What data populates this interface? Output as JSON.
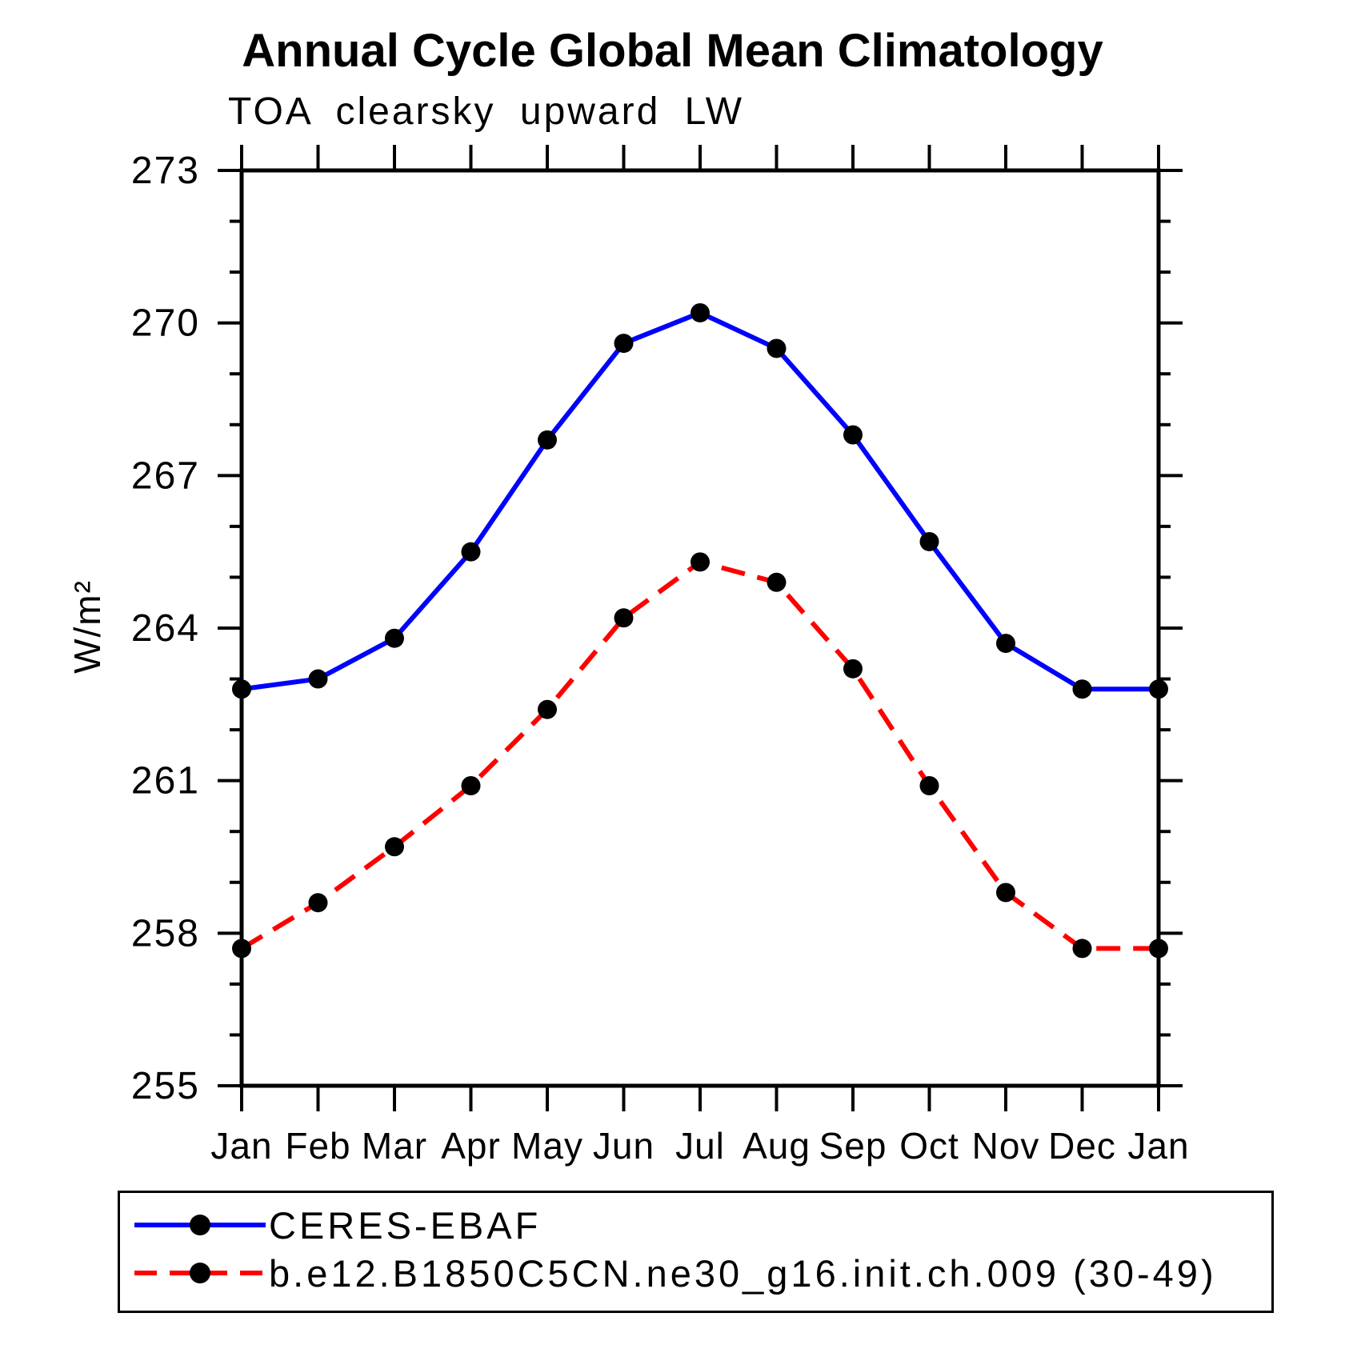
{
  "chart": {
    "title": "Annual Cycle Global Mean Climatology",
    "subtitle": "TOA clearsky upward LW",
    "ylabel": "W/m²"
  },
  "chart_data": {
    "type": "line",
    "title": "Annual Cycle Global Mean Climatology",
    "subtitle": "TOA clearsky upward LW",
    "xlabel": "",
    "ylabel": "W/m²",
    "categories": [
      "Jan",
      "Feb",
      "Mar",
      "Apr",
      "May",
      "Jun",
      "Jul",
      "Aug",
      "Sep",
      "Oct",
      "Nov",
      "Dec",
      "Jan"
    ],
    "series": [
      {
        "name": "CERES-EBAF",
        "color": "#0000ff",
        "line_style": "solid",
        "marker": "filled-circle",
        "marker_color": "#000000",
        "values": [
          262.8,
          263.0,
          263.8,
          265.5,
          267.7,
          269.6,
          270.2,
          269.5,
          267.8,
          265.7,
          263.7,
          262.8,
          262.8
        ]
      },
      {
        "name": "b.e12.B1850C5CN.ne30_g16.init.ch.009 (30-49)",
        "color": "#ff0000",
        "line_style": "dashed",
        "marker": "filled-circle",
        "marker_color": "#000000",
        "values": [
          257.7,
          258.6,
          259.7,
          260.9,
          262.4,
          264.2,
          265.3,
          264.9,
          263.2,
          260.9,
          258.8,
          257.7,
          257.7
        ]
      }
    ],
    "ylim": [
      255,
      273
    ],
    "yticks_major": [
      255,
      258,
      261,
      264,
      267,
      270,
      273
    ],
    "ytick_minor_step": 1,
    "grid": false,
    "axis_color": "#000000",
    "legend_position": "bottom"
  }
}
